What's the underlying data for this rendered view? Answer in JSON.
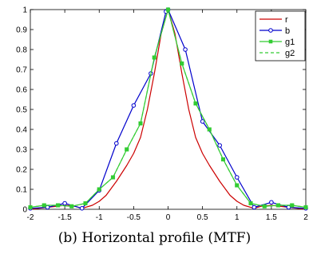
{
  "chart_data": {
    "type": "line",
    "title": "",
    "xlabel": "",
    "ylabel": "",
    "xlim": [
      -2,
      2
    ],
    "ylim": [
      0,
      1
    ],
    "xticks": [
      "-2",
      "-1.5",
      "-1",
      "-0.5",
      "0",
      "0.5",
      "1",
      "1.5",
      "2"
    ],
    "yticks": [
      "0",
      "0.1",
      "0.2",
      "0.3",
      "0.4",
      "0.5",
      "0.6",
      "0.7",
      "0.8",
      "0.9",
      "1"
    ],
    "grid": false,
    "legend_position": "top-right",
    "series": [
      {
        "name": "r",
        "color": "#cc0000",
        "style": "solid",
        "marker": "none",
        "x": [
          -2,
          -1.75,
          -1.5,
          -1.35,
          -1.25,
          -1.1,
          -1.0,
          -0.9,
          -0.75,
          -0.6,
          -0.5,
          -0.4,
          -0.3,
          -0.2,
          -0.1,
          0,
          0.1,
          0.2,
          0.3,
          0.4,
          0.5,
          0.6,
          0.75,
          0.9,
          1.0,
          1.1,
          1.25,
          1.35,
          1.5,
          1.75,
          2
        ],
        "y": [
          0.0,
          0.01,
          0.02,
          0.015,
          0.005,
          0.02,
          0.04,
          0.07,
          0.14,
          0.22,
          0.28,
          0.36,
          0.5,
          0.68,
          0.88,
          1.0,
          0.88,
          0.68,
          0.5,
          0.36,
          0.28,
          0.22,
          0.14,
          0.07,
          0.04,
          0.02,
          0.005,
          0.015,
          0.02,
          0.01,
          0.0
        ]
      },
      {
        "name": "b",
        "color": "#0000cc",
        "style": "solid",
        "marker": "circle",
        "x": [
          -2,
          -1.75,
          -1.5,
          -1.25,
          -1.0,
          -0.75,
          -0.5,
          -0.25,
          -0.03,
          0,
          0.25,
          0.5,
          0.75,
          1.0,
          1.25,
          1.5,
          1.75,
          2
        ],
        "y": [
          0.005,
          0.01,
          0.03,
          0.005,
          0.095,
          0.33,
          0.52,
          0.68,
          0.99,
          1.0,
          0.8,
          0.44,
          0.32,
          0.16,
          0.01,
          0.035,
          0.01,
          0.005
        ]
      },
      {
        "name": "g1",
        "color": "#33cc33",
        "style": "solid",
        "marker": "square",
        "x": [
          -2,
          -1.8,
          -1.6,
          -1.4,
          -1.2,
          -1.0,
          -0.8,
          -0.6,
          -0.4,
          -0.2,
          0,
          0.2,
          0.4,
          0.6,
          0.8,
          1.0,
          1.2,
          1.4,
          1.6,
          1.8,
          2
        ],
        "y": [
          0.01,
          0.02,
          0.02,
          0.015,
          0.03,
          0.1,
          0.16,
          0.3,
          0.43,
          0.76,
          1.0,
          0.73,
          0.53,
          0.4,
          0.25,
          0.12,
          0.03,
          0.015,
          0.02,
          0.02,
          0.01
        ]
      },
      {
        "name": "g2",
        "color": "#33cc33",
        "style": "dashed",
        "marker": "none",
        "x": [
          -2,
          -1.8,
          -1.6,
          -1.4,
          -1.2,
          -1.0,
          -0.8,
          -0.6,
          -0.4,
          -0.2,
          0,
          0.2,
          0.4,
          0.6,
          0.8,
          1.0,
          1.2,
          1.4,
          1.6,
          1.8,
          2
        ],
        "y": [
          0.01,
          0.02,
          0.02,
          0.015,
          0.03,
          0.1,
          0.16,
          0.3,
          0.43,
          0.76,
          1.0,
          0.73,
          0.53,
          0.4,
          0.25,
          0.12,
          0.03,
          0.015,
          0.02,
          0.02,
          0.01
        ]
      }
    ]
  },
  "caption": {
    "label": "(b) Horizontal profile (",
    "abbr": "MTF",
    "close": ")"
  }
}
